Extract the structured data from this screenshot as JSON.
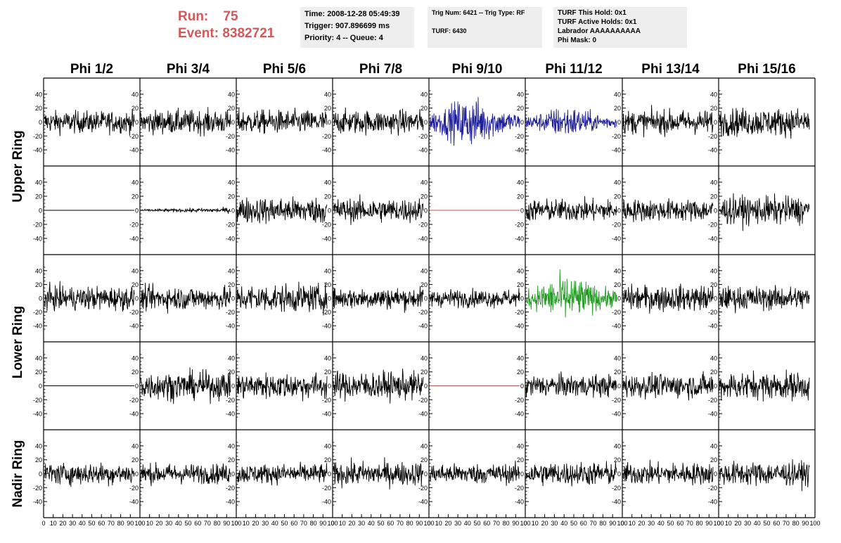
{
  "header": {
    "run_label": "Run:",
    "run_value": "75",
    "event_label": "Event:",
    "event_value": "8382721",
    "info_box_1": [
      "Time: 2008-12-28 05:49:39",
      "Trigger: 907.896699 ms",
      "Priority: 4 -- Queue: 4"
    ],
    "info_box_2": [
      "Trig Num: 6421 -- Trig Type: RF",
      "TURF: 6430"
    ],
    "info_box_3": [
      "TURF This Hold: 0x1",
      "TURF Active Holds: 0x1",
      "Labrador AAAAAAAAAA",
      "Phi Mask: 0"
    ]
  },
  "chart_data": {
    "type": "line",
    "column_titles": [
      "Phi 1/2",
      "Phi 3/4",
      "Phi 5/6",
      "Phi 7/8",
      "Phi 9/10",
      "Phi 11/12",
      "Phi 13/14",
      "Phi 15/16"
    ],
    "ring_labels": [
      {
        "label": "Upper Ring",
        "rows": [
          0,
          1
        ]
      },
      {
        "label": "Lower Ring",
        "rows": [
          2,
          3
        ]
      },
      {
        "label": "Nadir Ring",
        "rows": [
          4
        ]
      }
    ],
    "y_ticks": [
      -40,
      -20,
      0,
      20,
      40
    ],
    "ylim": [
      -50,
      50
    ],
    "x_ticks": [
      0,
      10,
      20,
      30,
      40,
      50,
      60,
      70,
      80,
      90,
      100
    ],
    "xlim": [
      0,
      100
    ],
    "trace_colors": {
      "default": "#000000",
      "flat": "#b85a5a",
      "blue": "#1f1f9a",
      "green": "#1e9a1e"
    },
    "panels": [
      [
        {
          "amp": 11,
          "color": "default"
        },
        {
          "amp": 12,
          "color": "default"
        },
        {
          "amp": 12,
          "color": "default"
        },
        {
          "amp": 12,
          "color": "default"
        },
        {
          "amp": 17,
          "color": "blue",
          "burst": true
        },
        {
          "amp": 11,
          "color": "blue",
          "burst": true
        },
        {
          "amp": 12,
          "color": "default"
        },
        {
          "amp": 14,
          "color": "default"
        }
      ],
      [
        {
          "amp": 0,
          "color": "default"
        },
        {
          "amp": 1.5,
          "color": "default",
          "grow": true
        },
        {
          "amp": 13,
          "color": "default"
        },
        {
          "amp": 12,
          "color": "default"
        },
        {
          "amp": 0,
          "color": "flat"
        },
        {
          "amp": 11,
          "color": "default"
        },
        {
          "amp": 11,
          "color": "default"
        },
        {
          "amp": 14,
          "color": "default"
        }
      ],
      [
        {
          "amp": 12,
          "color": "default"
        },
        {
          "amp": 12,
          "color": "default"
        },
        {
          "amp": 14,
          "color": "default"
        },
        {
          "amp": 11,
          "color": "default"
        },
        {
          "amp": 9,
          "color": "default"
        },
        {
          "amp": 16,
          "color": "green",
          "burst": true
        },
        {
          "amp": 13,
          "color": "default"
        },
        {
          "amp": 12,
          "color": "default"
        }
      ],
      [
        {
          "amp": 0,
          "color": "default"
        },
        {
          "amp": 14,
          "color": "default"
        },
        {
          "amp": 13,
          "color": "default"
        },
        {
          "amp": 14,
          "color": "default"
        },
        {
          "amp": 0,
          "color": "flat"
        },
        {
          "amp": 11,
          "color": "default"
        },
        {
          "amp": 12,
          "color": "default"
        },
        {
          "amp": 14,
          "color": "default"
        }
      ],
      [
        {
          "amp": 11,
          "color": "default"
        },
        {
          "amp": 10,
          "color": "default"
        },
        {
          "amp": 10,
          "color": "default"
        },
        {
          "amp": 12,
          "color": "default"
        },
        {
          "amp": 10,
          "color": "default"
        },
        {
          "amp": 12,
          "color": "default"
        },
        {
          "amp": 11,
          "color": "default"
        },
        {
          "amp": 12,
          "color": "default"
        }
      ]
    ]
  }
}
